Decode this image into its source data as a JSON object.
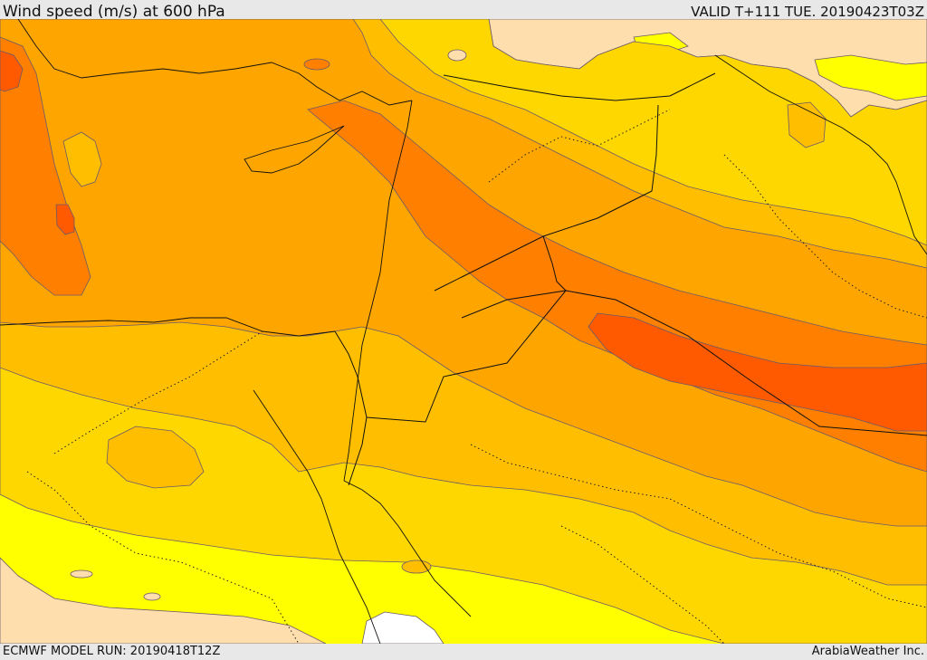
{
  "header": {
    "title": "Wind speed (m/s) at 600 hPa",
    "valid": "VALID T+111 TUE. 20190423T03Z"
  },
  "footer": {
    "model_run": "ECMWF MODEL RUN: 20190418T12Z",
    "credit": "ArabiaWeather Inc."
  },
  "map": {
    "colors": {
      "calm": "#ffffff",
      "very_light": "#ffdead",
      "light": "#ffff00",
      "moderate": "#ffd700",
      "fresh": "#ffbf00",
      "strong": "#ffa500",
      "very_strong": "#ff8000",
      "extreme": "#ff5a00"
    }
  }
}
